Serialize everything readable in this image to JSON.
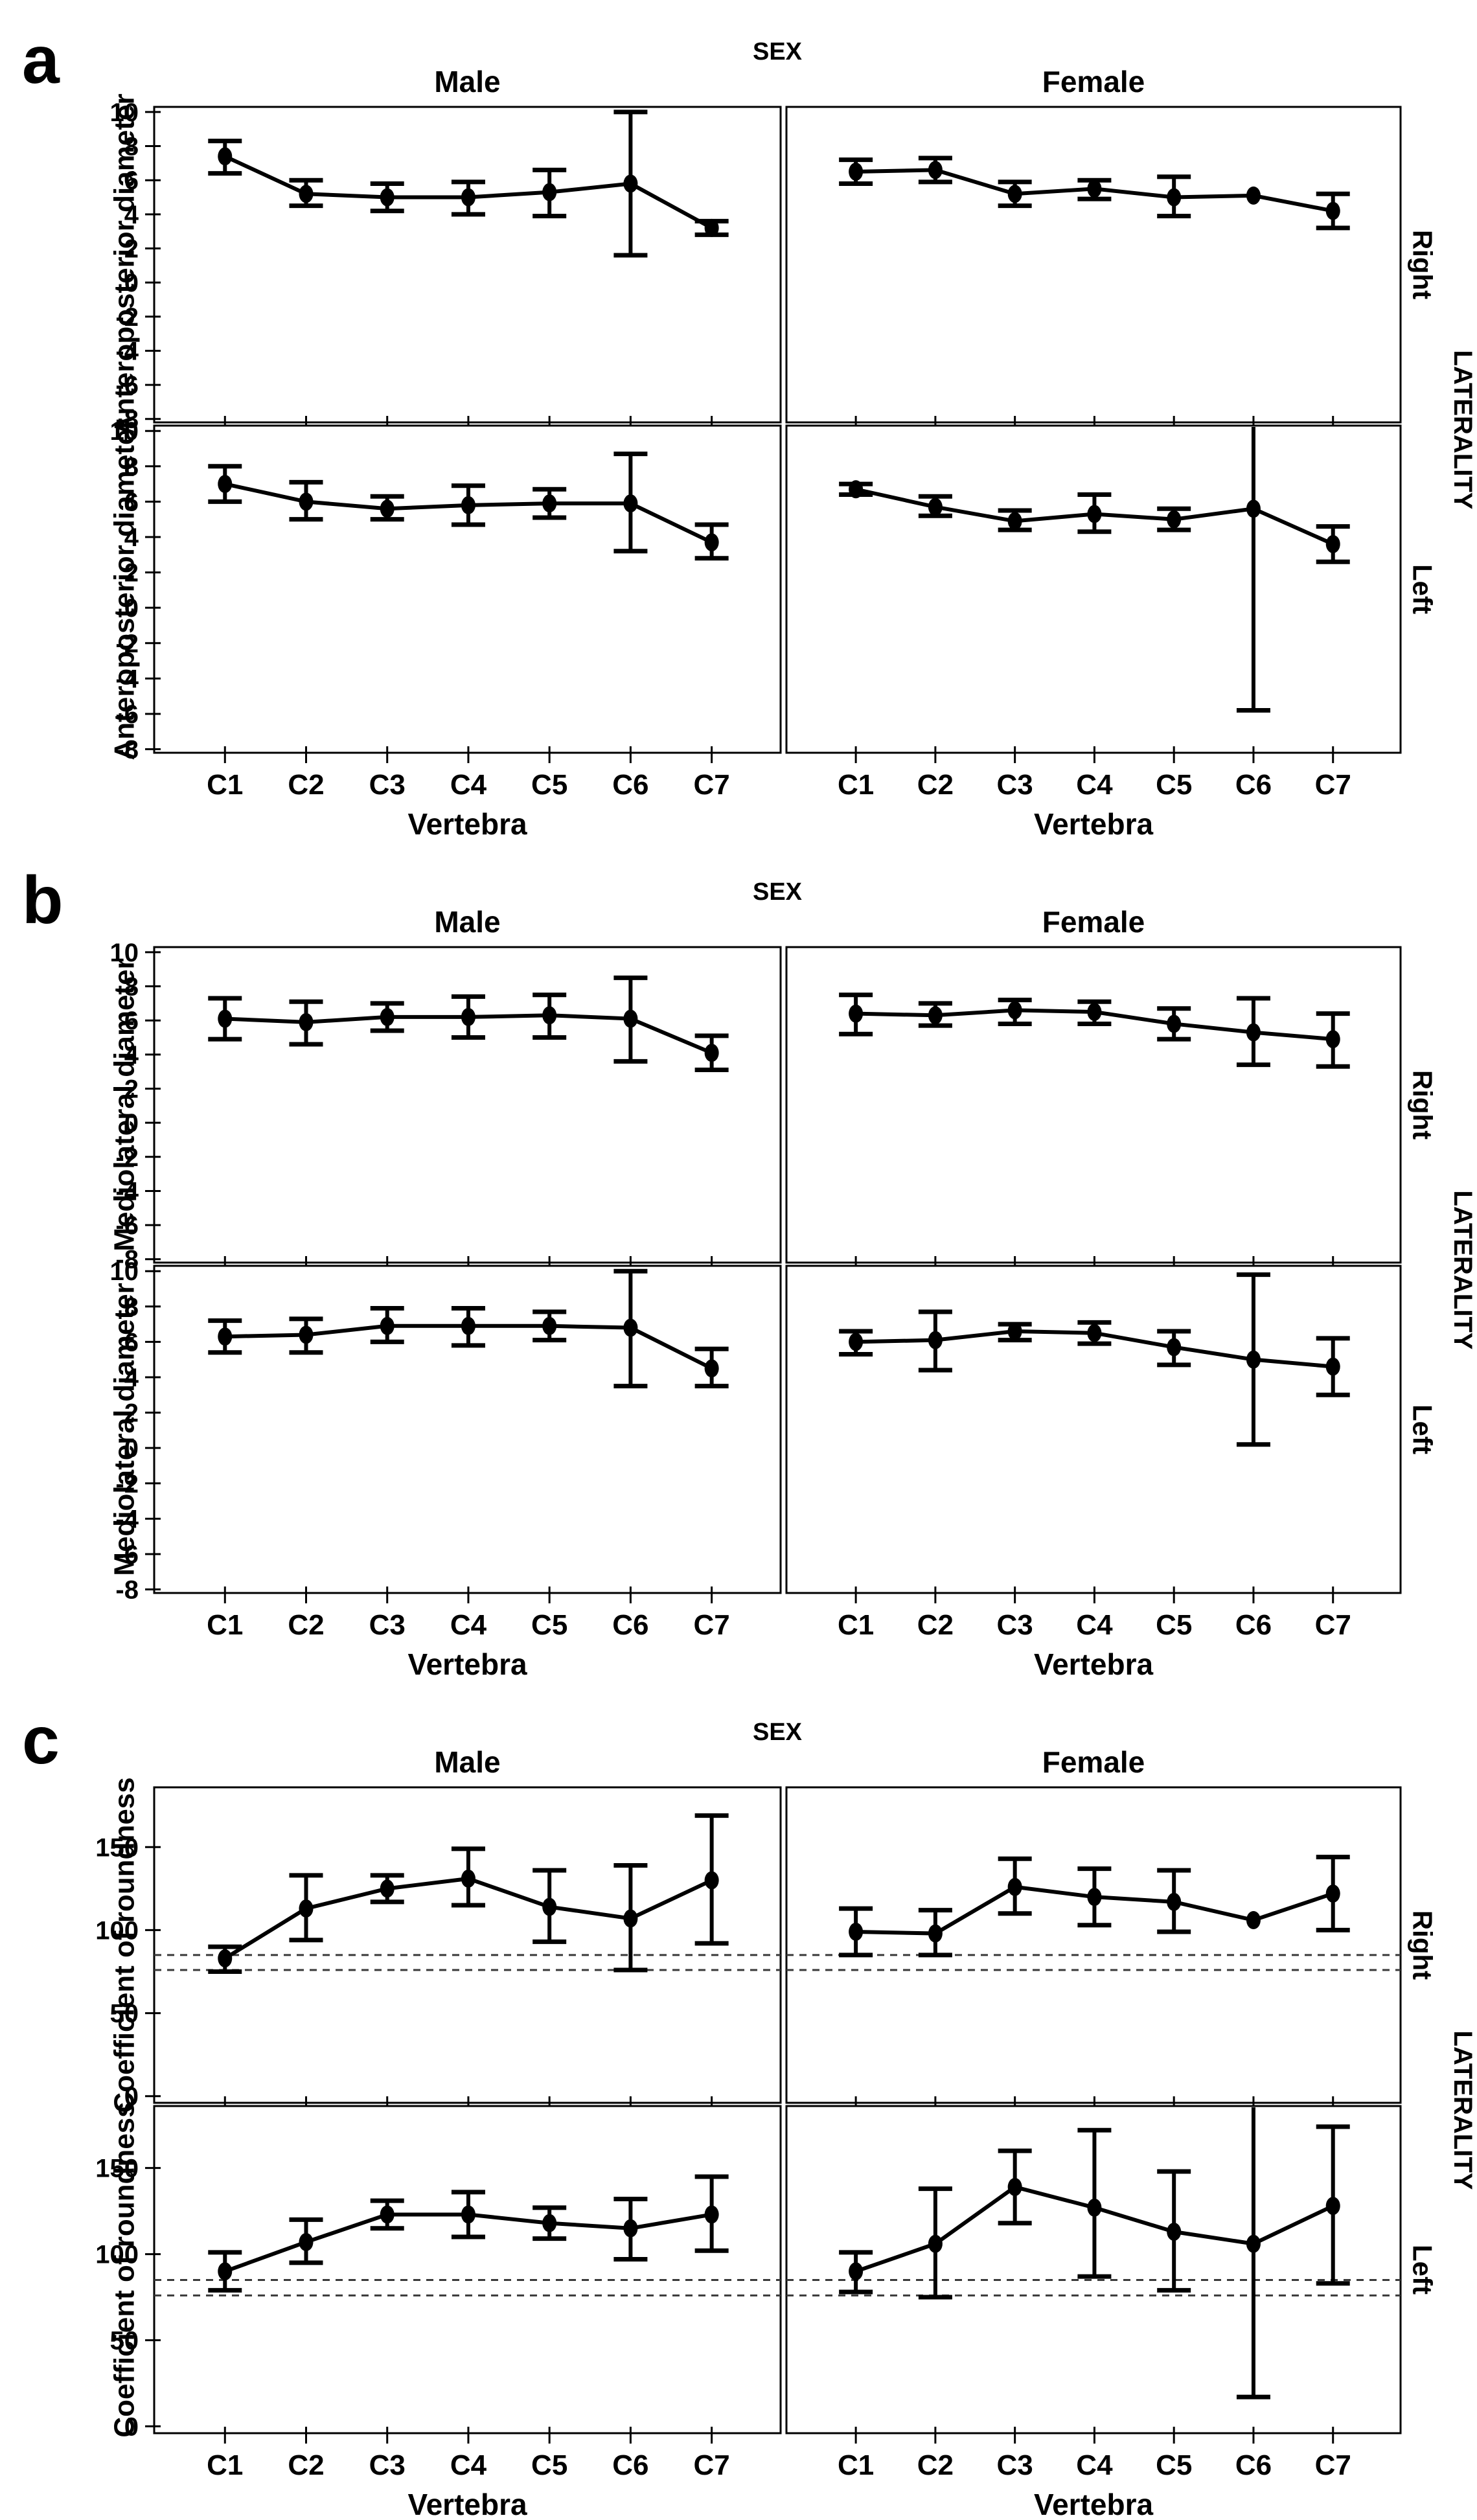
{
  "figure": {
    "sex_header": "SEX",
    "column_headers": [
      "Male",
      "Female"
    ],
    "row_headers": [
      "Right",
      "Left"
    ],
    "row_group_label": "LATERALITY",
    "xlabel": "Vertebra",
    "categories": [
      "C1",
      "C2",
      "C3",
      "C4",
      "C5",
      "C6",
      "C7"
    ],
    "panel_letters": [
      "a",
      "b",
      "c"
    ],
    "ink_color": "#000000",
    "ref_line_color": "#3a3a3a",
    "background_color": "#ffffff"
  },
  "chart_data": [
    {
      "panel": "a",
      "type": "line",
      "title": "SEX",
      "ylabel": "Anteroposterior diameter",
      "xlabel": "Vertebra",
      "categories": [
        "C1",
        "C2",
        "C3",
        "C4",
        "C5",
        "C6",
        "C7"
      ],
      "columns": [
        "Male",
        "Female"
      ],
      "rows": [
        "Right",
        "Left"
      ],
      "ylim": [
        -8.2,
        10.3
      ],
      "yticks": [
        10,
        8,
        6,
        4,
        2,
        0,
        -2,
        -4,
        -6,
        -8
      ],
      "ref_lines": [],
      "legend": "none",
      "grid": false,
      "cells": [
        {
          "sex": "Male",
          "laterality": "Right",
          "mean": [
            7.4,
            5.2,
            5.0,
            5.0,
            5.3,
            5.8,
            3.2
          ],
          "lo": [
            6.4,
            4.5,
            4.2,
            4.0,
            3.9,
            1.6,
            2.8
          ],
          "hi": [
            8.3,
            6.0,
            5.8,
            5.9,
            6.6,
            10.0,
            3.6
          ]
        },
        {
          "sex": "Female",
          "laterality": "Right",
          "mean": [
            6.5,
            6.6,
            5.2,
            5.5,
            5.0,
            5.1,
            4.2
          ],
          "lo": [
            5.8,
            5.9,
            4.5,
            4.9,
            3.9,
            5.1,
            3.2
          ],
          "hi": [
            7.2,
            7.3,
            5.9,
            6.0,
            6.2,
            5.1,
            5.2
          ]
        },
        {
          "sex": "Male",
          "laterality": "Left",
          "mean": [
            7.0,
            6.0,
            5.6,
            5.8,
            5.9,
            5.9,
            3.7
          ],
          "lo": [
            6.0,
            5.0,
            5.0,
            4.7,
            5.1,
            3.2,
            2.8
          ],
          "hi": [
            8.0,
            7.1,
            6.3,
            6.9,
            6.7,
            8.7,
            4.7
          ]
        },
        {
          "sex": "Female",
          "laterality": "Left",
          "mean": [
            6.7,
            5.7,
            4.9,
            5.3,
            5.0,
            5.6,
            3.6
          ],
          "lo": [
            6.4,
            5.2,
            4.4,
            4.3,
            4.4,
            -5.8,
            2.6
          ],
          "hi": [
            7.0,
            6.3,
            5.5,
            6.4,
            5.6,
            11.5,
            4.6
          ]
        }
      ]
    },
    {
      "panel": "b",
      "type": "line",
      "title": "SEX",
      "ylabel": "Mediolateral diameter",
      "xlabel": "Vertebra",
      "categories": [
        "C1",
        "C2",
        "C3",
        "C4",
        "C5",
        "C6",
        "C7"
      ],
      "columns": [
        "Male",
        "Female"
      ],
      "rows": [
        "Right",
        "Left"
      ],
      "ylim": [
        -8.2,
        10.3
      ],
      "yticks": [
        10,
        8,
        6,
        4,
        2,
        0,
        -2,
        -4,
        -6,
        -8
      ],
      "ref_lines": [],
      "legend": "none",
      "grid": false,
      "cells": [
        {
          "sex": "Male",
          "laterality": "Right",
          "mean": [
            6.1,
            5.9,
            6.2,
            6.2,
            6.3,
            6.1,
            4.1
          ],
          "lo": [
            4.9,
            4.6,
            5.4,
            5.0,
            5.0,
            3.6,
            3.1
          ],
          "hi": [
            7.3,
            7.1,
            7.0,
            7.4,
            7.5,
            8.5,
            5.1
          ]
        },
        {
          "sex": "Female",
          "laterality": "Right",
          "mean": [
            6.4,
            6.3,
            6.6,
            6.5,
            5.8,
            5.3,
            4.9
          ],
          "lo": [
            5.2,
            5.7,
            5.8,
            5.8,
            4.9,
            3.4,
            3.3
          ],
          "hi": [
            7.5,
            7.0,
            7.2,
            7.1,
            6.7,
            7.3,
            6.4
          ]
        },
        {
          "sex": "Male",
          "laterality": "Left",
          "mean": [
            6.3,
            6.4,
            6.9,
            6.9,
            6.9,
            6.8,
            4.5
          ],
          "lo": [
            5.4,
            5.4,
            6.0,
            5.8,
            6.1,
            3.5,
            3.5
          ],
          "hi": [
            7.2,
            7.3,
            7.9,
            7.9,
            7.7,
            10.0,
            5.6
          ]
        },
        {
          "sex": "Female",
          "laterality": "Left",
          "mean": [
            6.0,
            6.1,
            6.6,
            6.5,
            5.7,
            5.0,
            4.6
          ],
          "lo": [
            5.3,
            4.4,
            6.1,
            5.9,
            4.7,
            0.2,
            3.0
          ],
          "hi": [
            6.6,
            7.7,
            7.0,
            7.1,
            6.6,
            9.8,
            6.2
          ]
        }
      ]
    },
    {
      "panel": "c",
      "type": "line",
      "title": "SEX",
      "ylabel": "Coefficient of roundness",
      "xlabel": "Vertebra",
      "categories": [
        "C1",
        "C2",
        "C3",
        "C4",
        "C5",
        "C6",
        "C7"
      ],
      "columns": [
        "Male",
        "Female"
      ],
      "rows": [
        "Right",
        "Left"
      ],
      "ylim": [
        -4,
        186
      ],
      "yticks": [
        150,
        100,
        50,
        0
      ],
      "ref_lines": [
        85,
        76
      ],
      "legend": "none",
      "grid": false,
      "cells": [
        {
          "sex": "Male",
          "laterality": "Right",
          "mean": [
            83,
            113,
            125,
            131,
            114,
            107,
            130
          ],
          "lo": [
            75,
            94,
            117,
            115,
            93,
            76,
            92
          ],
          "hi": [
            90,
            133,
            133,
            149,
            136,
            139,
            169
          ]
        },
        {
          "sex": "Female",
          "laterality": "Right",
          "mean": [
            99,
            98,
            126,
            120,
            117,
            106,
            122
          ],
          "lo": [
            85,
            85,
            110,
            103,
            99,
            106,
            100
          ],
          "hi": [
            113,
            112,
            143,
            137,
            136,
            106,
            144
          ]
        },
        {
          "sex": "Male",
          "laterality": "Left",
          "mean": [
            90,
            107,
            123,
            123,
            118,
            115,
            123
          ],
          "lo": [
            79,
            95,
            115,
            110,
            109,
            97,
            102
          ],
          "hi": [
            101,
            120,
            131,
            136,
            127,
            132,
            145
          ]
        },
        {
          "sex": "Female",
          "laterality": "Left",
          "mean": [
            90,
            106,
            139,
            127,
            113,
            106,
            128
          ],
          "lo": [
            78,
            75,
            118,
            87,
            79,
            17,
            83
          ],
          "hi": [
            101,
            138,
            160,
            172,
            148,
            196,
            174
          ]
        }
      ]
    }
  ]
}
